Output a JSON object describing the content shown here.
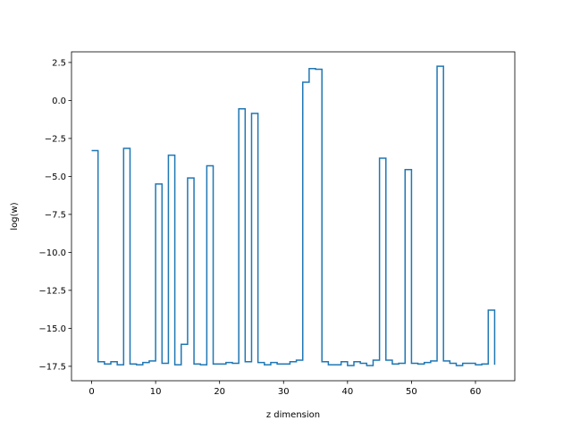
{
  "chart_data": {
    "type": "line",
    "drawstyle": "steps-post",
    "xlabel": "z dimension",
    "ylabel": "log(w)",
    "xlim": [
      -3.15,
      66.15
    ],
    "ylim": [
      -18.45,
      3.2
    ],
    "xticks": [
      0,
      10,
      20,
      30,
      40,
      50,
      60
    ],
    "yticks": [
      2.5,
      0.0,
      -2.5,
      -5.0,
      -7.5,
      -10.0,
      -12.5,
      -15.0,
      -17.5
    ],
    "ytick_labels": [
      "2.5",
      "0.0",
      "−2.5",
      "−5.0",
      "−7.5",
      "−10.0",
      "−12.5",
      "−15.0",
      "−17.5"
    ],
    "grid": false,
    "color": "#1f77b4",
    "series": [
      {
        "x": [
          0,
          1,
          2,
          3,
          4,
          5,
          6,
          7,
          8,
          9,
          10,
          11,
          12,
          13,
          14,
          15,
          16,
          17,
          18,
          19,
          20,
          21,
          22,
          23,
          24,
          25,
          26,
          27,
          28,
          29,
          30,
          31,
          32,
          33,
          34,
          35,
          36,
          37,
          38,
          39,
          40,
          41,
          42,
          43,
          44,
          45,
          46,
          47,
          48,
          49,
          50,
          51,
          52,
          53,
          54,
          55,
          56,
          57,
          58,
          59,
          60,
          61,
          62,
          63
        ],
        "y": [
          -3.3,
          -17.2,
          -17.35,
          -17.2,
          -17.4,
          -3.15,
          -17.35,
          -17.4,
          -17.25,
          -17.15,
          -5.5,
          -17.3,
          -3.6,
          -17.4,
          -16.05,
          -5.1,
          -17.35,
          -17.4,
          -4.3,
          -17.35,
          -17.35,
          -17.25,
          -17.3,
          -0.55,
          -17.2,
          -0.85,
          -17.25,
          -17.4,
          -17.25,
          -17.35,
          -17.35,
          -17.2,
          -17.1,
          1.2,
          2.1,
          2.05,
          -17.2,
          -17.4,
          -17.4,
          -17.2,
          -17.45,
          -17.2,
          -17.3,
          -17.45,
          -17.1,
          -3.8,
          -17.1,
          -17.35,
          -17.3,
          -4.55,
          -17.3,
          -17.35,
          -17.25,
          -17.15,
          2.25,
          -17.15,
          -17.3,
          -17.45,
          -17.3,
          -17.3,
          -17.4,
          -17.35,
          -13.8,
          -17.4
        ]
      }
    ]
  }
}
